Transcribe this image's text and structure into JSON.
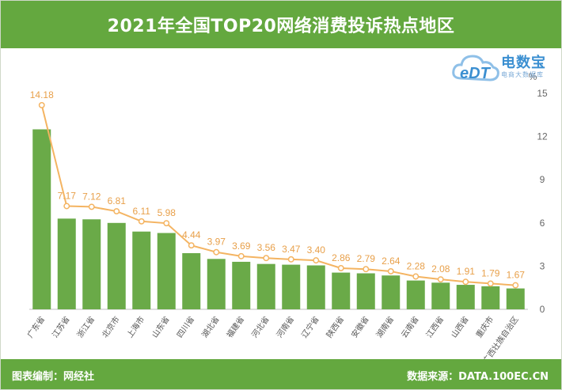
{
  "header": {
    "title": "2021年全国TOP20网络消费投诉热点地区"
  },
  "footer": {
    "left": "图表编制：网经社",
    "right": "数据来源：DATA.100EC.CN"
  },
  "logo": {
    "brand": "电数宝",
    "tagline": "电商大数据库",
    "mark": "eDT"
  },
  "colors": {
    "header_bg": "#64a83f",
    "bar": "#6aaa48",
    "line": "#f4b462",
    "label": "#e8a04a"
  },
  "chart_data": {
    "type": "bar",
    "categories": [
      "广东省",
      "江苏省",
      "浙江省",
      "北京市",
      "上海市",
      "山东省",
      "四川省",
      "湖北省",
      "福建省",
      "河北省",
      "河南省",
      "辽宁省",
      "陕西省",
      "安徽省",
      "湖南省",
      "云南省",
      "江西省",
      "山西省",
      "重庆市",
      "广西壮族自治区"
    ],
    "series": [
      {
        "values": [
          12.5,
          6.3,
          6.25,
          6.0,
          5.4,
          5.3,
          3.9,
          3.5,
          3.3,
          3.15,
          3.1,
          3.05,
          2.55,
          2.5,
          2.35,
          2.0,
          1.85,
          1.7,
          1.6,
          1.45
        ]
      },
      {
        "values": [
          14.18,
          7.17,
          7.12,
          6.81,
          6.11,
          5.98,
          4.44,
          3.97,
          3.69,
          3.56,
          3.47,
          3.4,
          2.86,
          2.79,
          2.64,
          2.28,
          2.08,
          1.91,
          1.79,
          1.67
        ],
        "data_labels": [
          "14.18",
          "7.17",
          "7.12",
          "6.81",
          "6.11",
          "5.98",
          "4.44",
          "3.97",
          "3.69",
          "3.56",
          "3.47",
          "3.40",
          "2.86",
          "2.79",
          "2.64",
          "2.28",
          "2.08",
          "1.91",
          "1.79",
          "1.67"
        ]
      }
    ],
    "y_unit": "%",
    "y_ticks": [
      "0",
      "3",
      "6",
      "9",
      "12",
      "15"
    ],
    "ylim": [
      0,
      15
    ],
    "grid": false
  }
}
